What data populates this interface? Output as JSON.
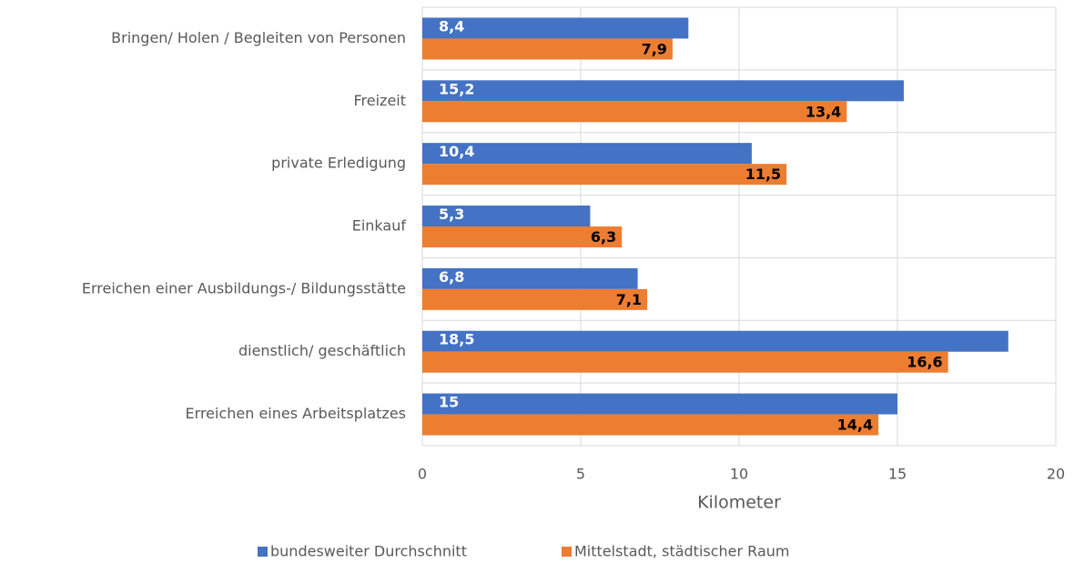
{
  "chart_data": {
    "type": "barh",
    "x_label": "Kilometer",
    "categories": [
      "Bringen/ Holen / Begleiten von Personen",
      "Freizeit",
      "private Erledigung",
      "Einkauf",
      "Erreichen einer Ausbildungs-/ Bildungsstätte",
      "dienstlich/ geschäftlich",
      "Erreichen eines Arbeitsplatzes"
    ],
    "series": [
      {
        "name": "bundesweiter Durchschnitt",
        "color": "#4472c4",
        "values": [
          8.4,
          15.2,
          10.4,
          5.3,
          6.8,
          18.5,
          15
        ],
        "value_labels": [
          "8,4",
          "15,2",
          "10,4",
          "5,3",
          "6,8",
          "18,5",
          "15"
        ]
      },
      {
        "name": "Mittelstadt, städtischer Raum",
        "color": "#ed7d31",
        "values": [
          7.9,
          13.4,
          11.5,
          6.3,
          7.1,
          16.6,
          14.4
        ],
        "value_labels": [
          "7,9",
          "13,4",
          "11,5",
          "6,3",
          "7,1",
          "16,6",
          "14,4"
        ]
      }
    ],
    "xlim": [
      0,
      20
    ],
    "xticks": [
      0,
      5,
      10,
      15,
      20
    ],
    "grid": true,
    "legend": "bottom"
  }
}
